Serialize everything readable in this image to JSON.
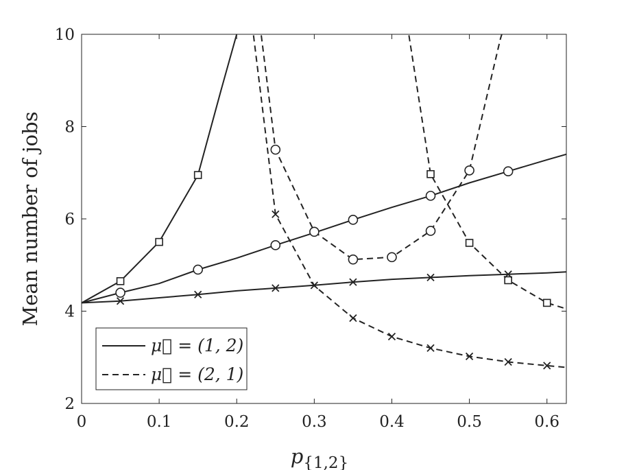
{
  "chart_data": {
    "type": "line",
    "title": "",
    "xlabel": "p{1,2}",
    "ylabel": "Mean number of jobs",
    "xlim": [
      0,
      0.625
    ],
    "ylim": [
      2,
      10
    ],
    "xticks": [
      "0",
      "0.1",
      "0.2",
      "0.3",
      "0.4",
      "0.5",
      "0.6"
    ],
    "yticks": [
      "2",
      "4",
      "6",
      "8",
      "10"
    ],
    "grid": false,
    "legend_position": "bottom-left",
    "legend": [
      {
        "label": "μ⃗ = (1, 2)",
        "style": "solid"
      },
      {
        "label": "μ⃗ = (2, 1)",
        "style": "dashed"
      }
    ],
    "series": [
      {
        "group": "solid",
        "marker": "square",
        "x": [
          0,
          0.05,
          0.1,
          0.15,
          0.18,
          0.2,
          0.21
        ],
        "y": [
          4.18,
          4.65,
          5.5,
          6.95,
          8.8,
          10.0,
          10.6
        ]
      },
      {
        "group": "solid",
        "marker": "circle",
        "x": [
          0,
          0.05,
          0.1,
          0.15,
          0.2,
          0.25,
          0.3,
          0.35,
          0.4,
          0.45,
          0.5,
          0.55,
          0.6,
          0.625
        ],
        "y": [
          4.18,
          4.4,
          4.6,
          4.9,
          5.15,
          5.43,
          5.7,
          5.98,
          6.25,
          6.5,
          6.78,
          7.03,
          7.28,
          7.4
        ]
      },
      {
        "group": "solid",
        "marker": "x",
        "x": [
          0,
          0.05,
          0.1,
          0.15,
          0.2,
          0.25,
          0.3,
          0.35,
          0.4,
          0.45,
          0.5,
          0.55,
          0.6,
          0.625
        ],
        "y": [
          4.18,
          4.22,
          4.29,
          4.36,
          4.44,
          4.5,
          4.56,
          4.63,
          4.69,
          4.73,
          4.77,
          4.8,
          4.83,
          4.85
        ]
      },
      {
        "group": "dashed",
        "marker": "x",
        "x": [
          0.22,
          0.25,
          0.3,
          0.35,
          0.4,
          0.45,
          0.5,
          0.55,
          0.6,
          0.625
        ],
        "y": [
          10.2,
          6.1,
          4.55,
          3.85,
          3.45,
          3.2,
          3.02,
          2.9,
          2.82,
          2.78
        ]
      },
      {
        "group": "dashed",
        "marker": "circle",
        "x": [
          0.23,
          0.25,
          0.3,
          0.35,
          0.4,
          0.45,
          0.5,
          0.54,
          0.56
        ],
        "y": [
          10.2,
          7.5,
          5.72,
          5.12,
          5.17,
          5.74,
          7.05,
          9.9,
          11.0
        ]
      },
      {
        "group": "dashed",
        "marker": "square",
        "x": [
          0.42,
          0.45,
          0.5,
          0.55,
          0.6,
          0.625
        ],
        "y": [
          10.2,
          6.97,
          5.48,
          4.67,
          4.18,
          4.05
        ]
      }
    ],
    "markers": {
      "square": [
        [
          0.05,
          4.65
        ],
        [
          0.1,
          5.5
        ],
        [
          0.15,
          6.95
        ],
        [
          0.45,
          6.97
        ],
        [
          0.5,
          5.48
        ],
        [
          0.55,
          4.67
        ],
        [
          0.6,
          4.18
        ]
      ],
      "circle": [
        [
          0.05,
          4.4
        ],
        [
          0.15,
          4.9
        ],
        [
          0.25,
          5.43
        ],
        [
          0.35,
          5.98
        ],
        [
          0.45,
          6.5
        ],
        [
          0.55,
          7.03
        ],
        [
          0.25,
          7.5
        ],
        [
          0.3,
          5.72
        ],
        [
          0.35,
          5.12
        ],
        [
          0.4,
          5.17
        ],
        [
          0.45,
          5.74
        ],
        [
          0.5,
          7.05
        ]
      ],
      "x": [
        [
          0.05,
          4.22
        ],
        [
          0.15,
          4.36
        ],
        [
          0.25,
          4.5
        ],
        [
          0.3,
          4.56
        ],
        [
          0.35,
          4.63
        ],
        [
          0.45,
          4.73
        ],
        [
          0.55,
          4.8
        ],
        [
          0.25,
          6.1
        ],
        [
          0.35,
          3.85
        ],
        [
          0.4,
          3.45
        ],
        [
          0.45,
          3.2
        ],
        [
          0.5,
          3.02
        ],
        [
          0.55,
          2.9
        ],
        [
          0.6,
          2.82
        ]
      ]
    }
  }
}
